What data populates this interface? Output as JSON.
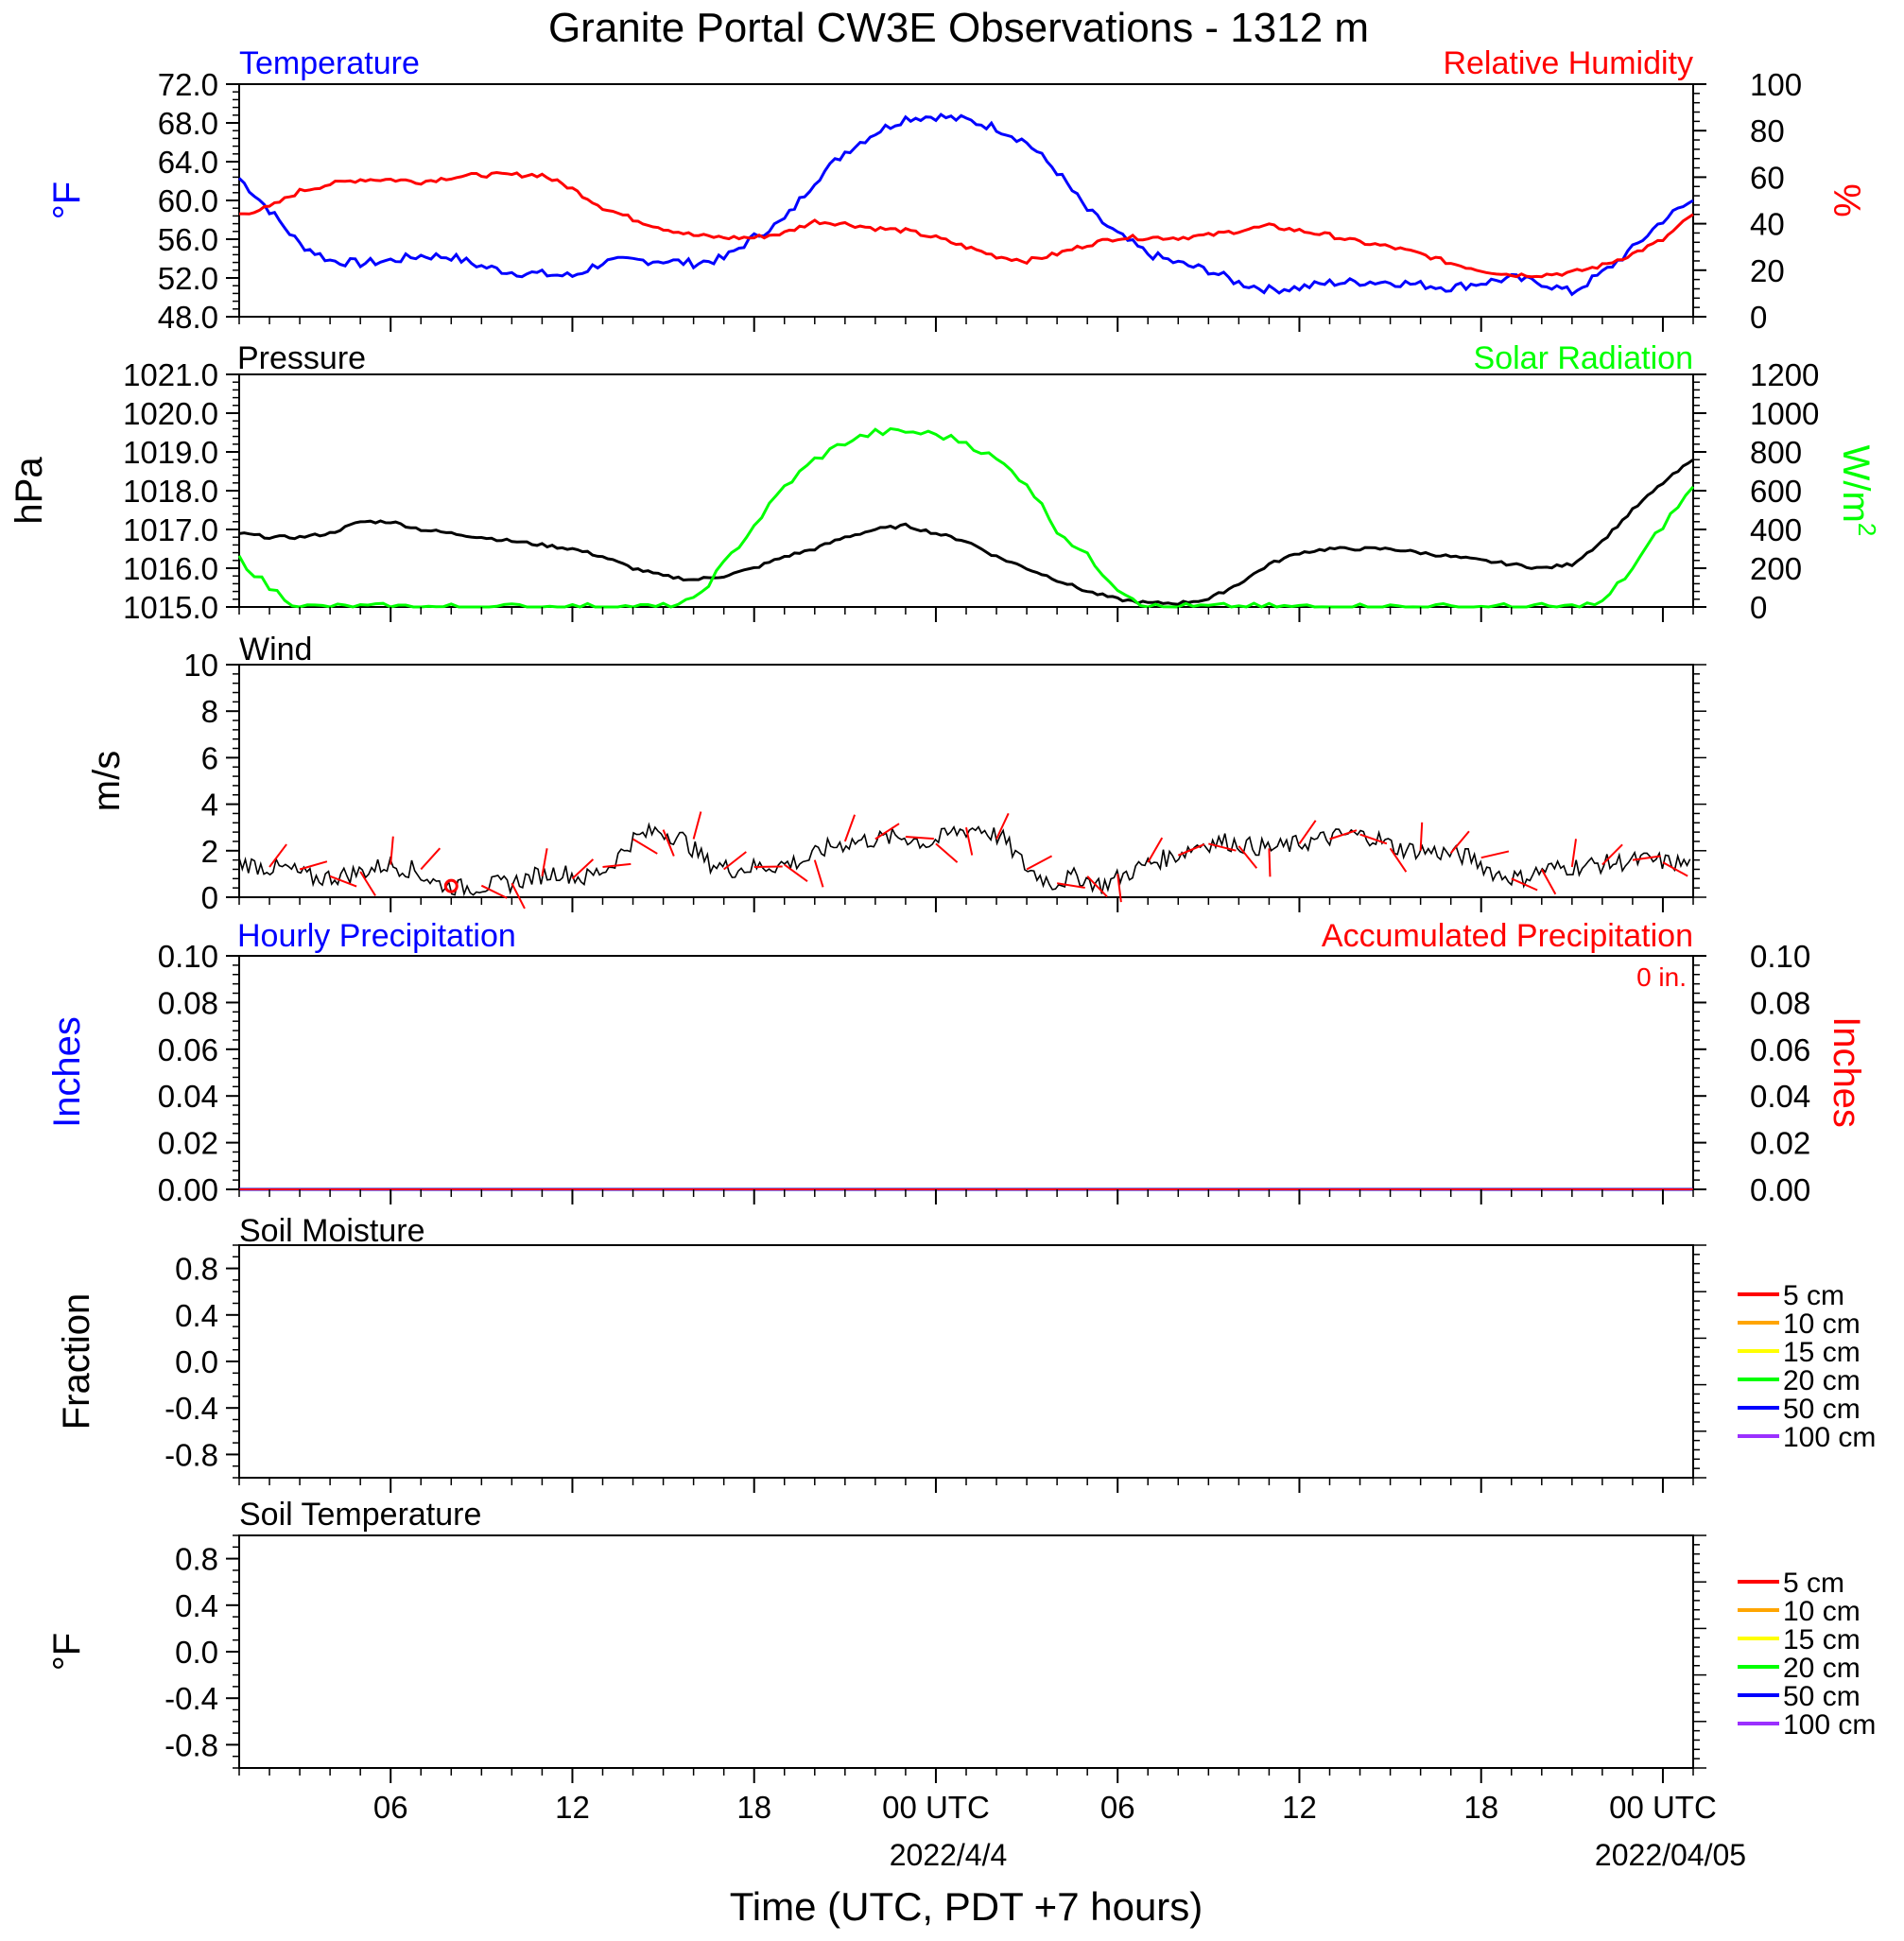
{
  "title": "Granite Portal CW3E Observations - 1312 m",
  "x_axis": {
    "title": "Time (UTC, PDT +7 hours)",
    "tick_labels": [
      "06",
      "12",
      "18",
      "00 UTC",
      "06",
      "12",
      "18",
      "00 UTC"
    ],
    "date_labels": [
      "2022/4/4",
      "2022/04/05"
    ]
  },
  "colors": {
    "temperature": "#0000ff",
    "humidity": "#ff0000",
    "pressure": "#000000",
    "solar": "#00ff00",
    "wind": "#000000",
    "wind_barb": "#ff0000",
    "hourly_precip": "#0000ff",
    "accum_precip": "#ff0000"
  },
  "panels": {
    "temperature_humidity": {
      "left_title": "Temperature",
      "right_title": "Relative Humidity",
      "left_unit": "°F",
      "right_unit": "%",
      "left_ticks": [
        "72.0",
        "68.0",
        "64.0",
        "60.0",
        "56.0",
        "52.0",
        "48.0"
      ],
      "right_ticks": [
        "100",
        "80",
        "60",
        "40",
        "20",
        "0"
      ]
    },
    "pressure_solar": {
      "left_title": "Pressure",
      "right_title": "Solar Radiation",
      "left_unit": "hPa",
      "right_unit": "W/m",
      "right_unit_sup": "2",
      "left_ticks": [
        "1021.0",
        "1020.0",
        "1019.0",
        "1018.0",
        "1017.0",
        "1016.0",
        "1015.0"
      ],
      "right_ticks": [
        "1200",
        "1000",
        "800",
        "600",
        "400",
        "200",
        "0"
      ]
    },
    "wind": {
      "left_title": "Wind",
      "left_unit": "m/s",
      "left_ticks": [
        "10",
        "8",
        "6",
        "4",
        "2",
        "0"
      ]
    },
    "precipitation": {
      "left_title": "Hourly Precipitation",
      "right_title": "Accumulated Precipitation",
      "accum_label": "0 in.",
      "left_unit": "Inches",
      "right_unit": "Inches",
      "left_ticks": [
        "0.10",
        "0.08",
        "0.06",
        "0.04",
        "0.02",
        "0.00"
      ],
      "right_ticks": [
        "0.10",
        "0.08",
        "0.06",
        "0.04",
        "0.02",
        "0.00"
      ]
    },
    "soil_moisture": {
      "left_title": "Soil Moisture",
      "left_unit": "Fraction",
      "left_ticks": [
        "0.8",
        "0.4",
        "0.0",
        "-0.4",
        "-0.8"
      ],
      "legend": [
        {
          "label": "5 cm",
          "color": "#ff0000"
        },
        {
          "label": "10 cm",
          "color": "#ffa500"
        },
        {
          "label": "15 cm",
          "color": "#ffff00"
        },
        {
          "label": "20 cm",
          "color": "#00ff00"
        },
        {
          "label": "50 cm",
          "color": "#0000ff"
        },
        {
          "label": "100 cm",
          "color": "#9b30ff"
        }
      ]
    },
    "soil_temperature": {
      "left_title": "Soil Temperature",
      "left_unit": "°F",
      "left_ticks": [
        "0.8",
        "0.4",
        "0.0",
        "-0.4",
        "-0.8"
      ],
      "legend": [
        {
          "label": "5 cm",
          "color": "#ff0000"
        },
        {
          "label": "10 cm",
          "color": "#ffa500"
        },
        {
          "label": "15 cm",
          "color": "#ffff00"
        },
        {
          "label": "20 cm",
          "color": "#00ff00"
        },
        {
          "label": "50 cm",
          "color": "#0000ff"
        },
        {
          "label": "100 cm",
          "color": "#9b30ff"
        }
      ]
    }
  },
  "chart_data": [
    {
      "type": "line",
      "title": "Temperature / Relative Humidity",
      "x_unit": "hours since 2022-04-03 01 UTC (approx)",
      "xlim": [
        0,
        48
      ],
      "series": [
        {
          "name": "Temperature",
          "axis": "left",
          "ylim": [
            48,
            72
          ],
          "color": "#0000ff",
          "points": [
            [
              0,
              62.3
            ],
            [
              1,
              59
            ],
            [
              2,
              55.5
            ],
            [
              3,
              53.8
            ],
            [
              4,
              53.5
            ],
            [
              5,
              53.8
            ],
            [
              6,
              54.3
            ],
            [
              7,
              54.2
            ],
            [
              8,
              53.2
            ],
            [
              9,
              52.6
            ],
            [
              10,
              52.4
            ],
            [
              11,
              52.2
            ],
            [
              12,
              53.6
            ],
            [
              13,
              53.8
            ],
            [
              14,
              53.8
            ],
            [
              15,
              53.5
            ],
            [
              16,
              54
            ],
            [
              17,
              56.2
            ],
            [
              18,
              58
            ],
            [
              19,
              62
            ],
            [
              20,
              65
            ],
            [
              21,
              67
            ],
            [
              22,
              68.5
            ],
            [
              23,
              68.7
            ],
            [
              24,
              68.3
            ],
            [
              25,
              67.5
            ],
            [
              26,
              66
            ],
            [
              27,
              63
            ],
            [
              28,
              59
            ],
            [
              29,
              56.5
            ],
            [
              30,
              54.5
            ],
            [
              31,
              53.5
            ],
            [
              32,
              52.8
            ],
            [
              33,
              51.5
            ],
            [
              34,
              50.8
            ],
            [
              35,
              51
            ],
            [
              36,
              51.5
            ],
            [
              37,
              51.6
            ],
            [
              38,
              51.6
            ],
            [
              39,
              51.3
            ],
            [
              40,
              51
            ],
            [
              41,
              51.5
            ],
            [
              42,
              52
            ],
            [
              43,
              51.5
            ],
            [
              44,
              50.5
            ],
            [
              45,
              52.5
            ],
            [
              46,
              55
            ],
            [
              47,
              58
            ],
            [
              48,
              60
            ]
          ]
        },
        {
          "name": "Relative Humidity",
          "axis": "right",
          "ylim": [
            0,
            100
          ],
          "color": "#ff0000",
          "points": [
            [
              0,
              44
            ],
            [
              1,
              47
            ],
            [
              2,
              54
            ],
            [
              3,
              57
            ],
            [
              4,
              59
            ],
            [
              5,
              59
            ],
            [
              6,
              58
            ],
            [
              7,
              60
            ],
            [
              8,
              61
            ],
            [
              9,
              61
            ],
            [
              10,
              61
            ],
            [
              11,
              55
            ],
            [
              12,
              47
            ],
            [
              13,
              42
            ],
            [
              14,
              38
            ],
            [
              15,
              35
            ],
            [
              16,
              34
            ],
            [
              17,
              34
            ],
            [
              18,
              36
            ],
            [
              19,
              41
            ],
            [
              20,
              40
            ],
            [
              21,
              38
            ],
            [
              22,
              37
            ],
            [
              23,
              34
            ],
            [
              24,
              30
            ],
            [
              25,
              26
            ],
            [
              26,
              24
            ],
            [
              27,
              27
            ],
            [
              28,
              31
            ],
            [
              29,
              34
            ],
            [
              30,
              34
            ],
            [
              31,
              34
            ],
            [
              32,
              35
            ],
            [
              33,
              37
            ],
            [
              34,
              39
            ],
            [
              35,
              37
            ],
            [
              36,
              35
            ],
            [
              37,
              32
            ],
            [
              38,
              30
            ],
            [
              39,
              27
            ],
            [
              40,
              23
            ],
            [
              41,
              20
            ],
            [
              42,
              18
            ],
            [
              43,
              18
            ],
            [
              44,
              19
            ],
            [
              45,
              22
            ],
            [
              46,
              27
            ],
            [
              47,
              33
            ],
            [
              48,
              44
            ]
          ]
        }
      ]
    },
    {
      "type": "line",
      "title": "Pressure / Solar Radiation",
      "xlim": [
        0,
        48
      ],
      "series": [
        {
          "name": "Pressure",
          "axis": "left",
          "ylim": [
            1015,
            1021
          ],
          "color": "#000000",
          "points": [
            [
              0,
              1016.9
            ],
            [
              1,
              1016.8
            ],
            [
              2,
              1016.8
            ],
            [
              3,
              1016.9
            ],
            [
              4,
              1017.2
            ],
            [
              5,
              1017.2
            ],
            [
              6,
              1017
            ],
            [
              7,
              1016.9
            ],
            [
              8,
              1016.8
            ],
            [
              9,
              1016.7
            ],
            [
              10,
              1016.6
            ],
            [
              11,
              1016.5
            ],
            [
              12,
              1016.3
            ],
            [
              13,
              1016
            ],
            [
              14,
              1015.8
            ],
            [
              15,
              1015.7
            ],
            [
              16,
              1015.8
            ],
            [
              17,
              1016
            ],
            [
              18,
              1016.3
            ],
            [
              19,
              1016.5
            ],
            [
              20,
              1016.8
            ],
            [
              21,
              1017
            ],
            [
              22,
              1017.1
            ],
            [
              23,
              1016.9
            ],
            [
              24,
              1016.7
            ],
            [
              25,
              1016.3
            ],
            [
              26,
              1016
            ],
            [
              27,
              1015.7
            ],
            [
              28,
              1015.4
            ],
            [
              29,
              1015.2
            ],
            [
              30,
              1015.1
            ],
            [
              31,
              1015.1
            ],
            [
              32,
              1015.2
            ],
            [
              33,
              1015.6
            ],
            [
              34,
              1016.1
            ],
            [
              35,
              1016.4
            ],
            [
              36,
              1016.5
            ],
            [
              37,
              1016.5
            ],
            [
              38,
              1016.5
            ],
            [
              39,
              1016.4
            ],
            [
              40,
              1016.3
            ],
            [
              41,
              1016.2
            ],
            [
              42,
              1016.1
            ],
            [
              43,
              1016
            ],
            [
              44,
              1016.1
            ],
            [
              45,
              1016.7
            ],
            [
              46,
              1017.5
            ],
            [
              47,
              1018.2
            ],
            [
              48,
              1018.8
            ]
          ]
        },
        {
          "name": "Solar Radiation",
          "axis": "right",
          "ylim": [
            0,
            1200
          ],
          "color": "#00ff00",
          "points": [
            [
              0,
              250
            ],
            [
              1,
              100
            ],
            [
              2,
              0
            ],
            [
              3,
              0
            ],
            [
              4,
              0
            ],
            [
              5,
              0
            ],
            [
              6,
              0
            ],
            [
              7,
              0
            ],
            [
              8,
              0
            ],
            [
              9,
              0
            ],
            [
              10,
              0
            ],
            [
              11,
              0
            ],
            [
              12,
              0
            ],
            [
              13,
              0
            ],
            [
              14,
              0
            ],
            [
              15,
              30
            ],
            [
              16,
              220
            ],
            [
              17,
              420
            ],
            [
              18,
              620
            ],
            [
              19,
              760
            ],
            [
              20,
              850
            ],
            [
              21,
              900
            ],
            [
              22,
              905
            ],
            [
              23,
              890
            ],
            [
              24,
              850
            ],
            [
              25,
              760
            ],
            [
              26,
              640
            ],
            [
              27,
              400
            ],
            [
              28,
              260
            ],
            [
              29,
              100
            ],
            [
              30,
              0
            ],
            [
              31,
              0
            ],
            [
              32,
              0
            ],
            [
              33,
              0
            ],
            [
              34,
              0
            ],
            [
              35,
              0
            ],
            [
              36,
              0
            ],
            [
              37,
              0
            ],
            [
              38,
              0
            ],
            [
              39,
              0
            ],
            [
              40,
              0
            ],
            [
              41,
              0
            ],
            [
              42,
              0
            ],
            [
              43,
              0
            ],
            [
              44,
              0
            ],
            [
              45,
              20
            ],
            [
              46,
              200
            ],
            [
              47,
              420
            ],
            [
              48,
              620
            ]
          ]
        }
      ]
    },
    {
      "type": "line",
      "title": "Wind",
      "xlim": [
        0,
        48
      ],
      "ylim": [
        0,
        10
      ],
      "series": [
        {
          "name": "Wind",
          "color": "#000000",
          "values": [
            1.5,
            1.3,
            1.2,
            0.8,
            0.9,
            1.1,
            1.4,
            1.2,
            0.6,
            0.4,
            0.5,
            0.6,
            0.9,
            1.1,
            0.8,
            1.3,
            2.5,
            2.9,
            2.5,
            1.5,
            1.2,
            1.3,
            1.4,
            1.6,
            2.2,
            2.4,
            2.5,
            2.6,
            2.3,
            2.8,
            3.0,
            2.5,
            1.2,
            0.6,
            0.9,
            0.5,
            1.0,
            1.5,
            1.8,
            2.3,
            2.4,
            2.2,
            2.1,
            2.3,
            2.5,
            2.7,
            2.6,
            2.1,
            2.0,
            1.9,
            1.7,
            1.0,
            0.8,
            1.2,
            1.3,
            1.4,
            1.5,
            1.6,
            1.5,
            1.4
          ]
        }
      ]
    },
    {
      "type": "line",
      "title": "Hourly Precipitation / Accumulated Precipitation",
      "xlim": [
        0,
        48
      ],
      "ylim": [
        0,
        0.1
      ],
      "series": [
        {
          "name": "Hourly Precipitation",
          "color": "#0000ff",
          "points": [
            [
              0,
              0
            ],
            [
              48,
              0
            ]
          ]
        },
        {
          "name": "Accumulated Precipitation",
          "color": "#ff0000",
          "points": [
            [
              0,
              0
            ],
            [
              48,
              0
            ]
          ]
        }
      ]
    }
  ]
}
